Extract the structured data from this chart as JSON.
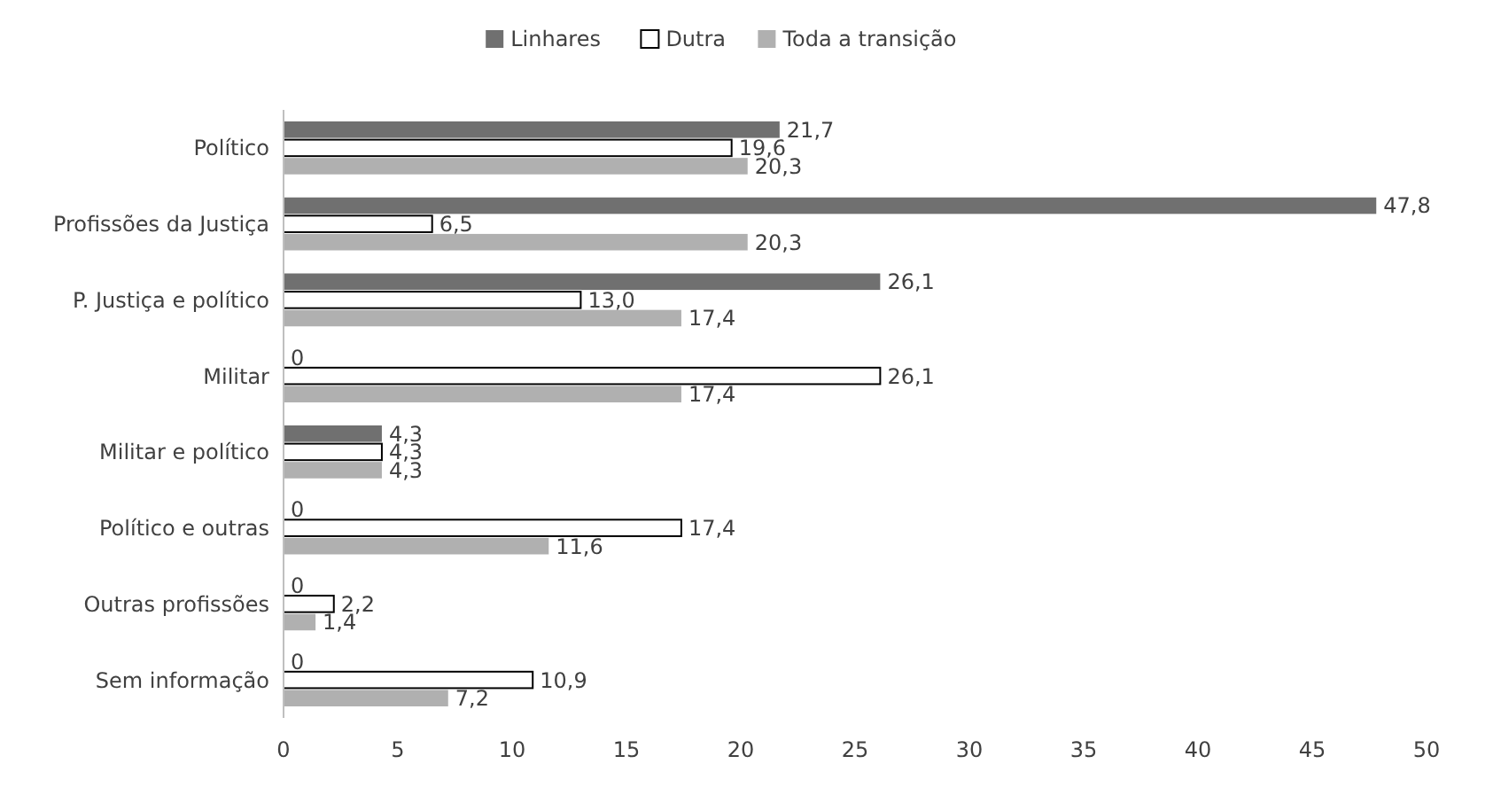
{
  "chart_data": {
    "type": "bar",
    "orientation": "horizontal",
    "categories": [
      "Político",
      "Profissões da Justiça",
      "P. Justiça e político",
      "Militar",
      "Militar e político",
      "Político e outras",
      "Outras profissões",
      "Sem informação"
    ],
    "series": [
      {
        "name": "Linhares",
        "color": "#707070",
        "values": [
          21.7,
          47.8,
          26.1,
          0,
          4.3,
          0,
          0,
          0
        ],
        "value_labels": [
          "21,7",
          "47,8",
          "26,1",
          "0",
          "4,3",
          "0",
          "0",
          "0"
        ]
      },
      {
        "name": "Dutra",
        "color": "#ffffff",
        "values": [
          19.6,
          6.5,
          13.0,
          26.1,
          4.3,
          17.4,
          2.2,
          10.9
        ],
        "value_labels": [
          "19,6",
          "6,5",
          "13,0",
          "26,1",
          "4,3",
          "17,4",
          "2,2",
          "10,9"
        ]
      },
      {
        "name": "Toda a transição",
        "color": "#b0b0b0",
        "values": [
          20.3,
          20.3,
          17.4,
          17.4,
          4.3,
          11.6,
          1.4,
          7.2
        ],
        "value_labels": [
          "20,3",
          "20,3",
          "17,4",
          "17,4",
          "4,3",
          "11,6",
          "1,4",
          "7,2"
        ]
      }
    ],
    "xlim": [
      0,
      50
    ],
    "xticks": [
      0,
      5,
      10,
      15,
      20,
      25,
      30,
      35,
      40,
      45,
      50
    ],
    "grid": false,
    "legend": "top"
  }
}
